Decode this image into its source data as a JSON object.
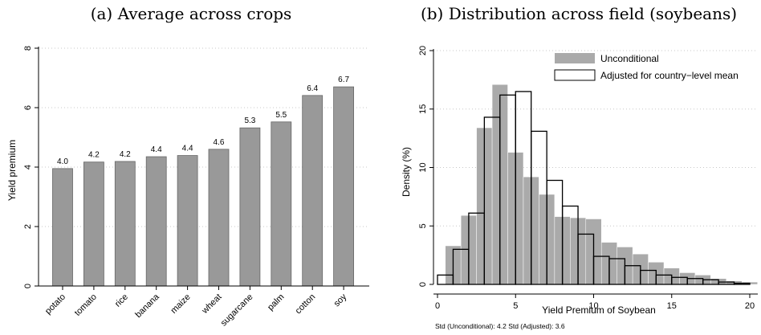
{
  "chart_data": [
    {
      "type": "bar",
      "title": "(a) Average across crops",
      "xlabel": "",
      "ylabel": "Yield premium",
      "ylim": [
        0,
        8
      ],
      "yticks": [
        "0",
        "2",
        "4",
        "6",
        "8"
      ],
      "grid": true,
      "categories": [
        "potato",
        "tomato",
        "rice",
        "banana",
        "maize",
        "wheat",
        "sugarcane",
        "palm",
        "cotton",
        "soy"
      ],
      "values": [
        3.95,
        4.17,
        4.19,
        4.35,
        4.39,
        4.6,
        5.32,
        5.52,
        6.41,
        6.7
      ],
      "value_labels": [
        "4.0",
        "4.2",
        "4.2",
        "4.4",
        "4.4",
        "4.6",
        "5.3",
        "5.5",
        "6.4",
        "6.7"
      ],
      "bar_color": "#999999"
    },
    {
      "type": "histogram",
      "title": "(b) Distribution across field (soybeans)",
      "xlabel": "Yield Premium of Soybean",
      "ylabel": "Density (%)",
      "xlim": [
        0,
        20.5
      ],
      "ylim": [
        0,
        20
      ],
      "xticks": [
        "0",
        "5",
        "10",
        "15",
        "20"
      ],
      "yticks": [
        "0",
        "5",
        "10",
        "15",
        "20"
      ],
      "grid": true,
      "legend_position": "top-right",
      "bin_width": 1,
      "series": [
        {
          "name": "Unconditional",
          "style": "filled",
          "color": "#aaaaaa",
          "x": [
            1,
            2,
            3,
            4,
            5,
            6,
            7,
            8,
            9,
            10,
            11,
            12,
            13,
            14,
            15,
            16,
            17,
            18,
            19,
            20
          ],
          "values": [
            3.3,
            5.9,
            13.4,
            17.1,
            11.3,
            9.2,
            7.7,
            5.8,
            5.7,
            5.6,
            3.6,
            3.2,
            2.6,
            1.9,
            1.4,
            1.0,
            0.8,
            0.5,
            0.3,
            0.2
          ]
        },
        {
          "name": "Adjusted for country−level mean",
          "style": "outline",
          "color": "#000000",
          "x": [
            0.5,
            1.5,
            2.5,
            3.5,
            4.5,
            5.5,
            6.5,
            7.5,
            8.5,
            9.5,
            10.5,
            11.5,
            12.5,
            13.5,
            14.5,
            15.5,
            16.5,
            17.5,
            18.5,
            19.5
          ],
          "values": [
            0.8,
            3.0,
            6.1,
            14.3,
            16.2,
            16.5,
            13.1,
            8.9,
            6.7,
            4.3,
            2.4,
            2.2,
            1.6,
            1.2,
            0.8,
            0.6,
            0.5,
            0.4,
            0.2,
            0.1
          ]
        }
      ],
      "note": "Std (Unconditional): 4.2 Std (Adjusted): 3.6"
    }
  ]
}
